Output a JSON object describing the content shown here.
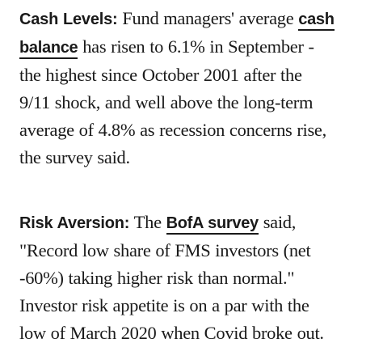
{
  "para1": {
    "lead": "Cash Levels:",
    "l1_text": " Fund managers' average ",
    "l1_link": "cash",
    "l2_link": "balance",
    "l2_text": " has risen to 6.1% in September -",
    "l3": "the highest since October 2001 after the",
    "l4": "9/11 shock, and well above the long-term",
    "l5": "average of 4.8% as recession concerns rise,",
    "l6": "the survey said."
  },
  "para2": {
    "lead": "Risk Aversion:",
    "l1_pre": " The ",
    "l1_link": "BofA survey",
    "l1_post": " said,",
    "l2": "\"Record low share of FMS investors (net",
    "l3": "-60%) taking higher risk than normal.\"",
    "l4": "Investor risk appetite is on a par with the",
    "l5": "low of March 2020 when Covid broke out."
  }
}
